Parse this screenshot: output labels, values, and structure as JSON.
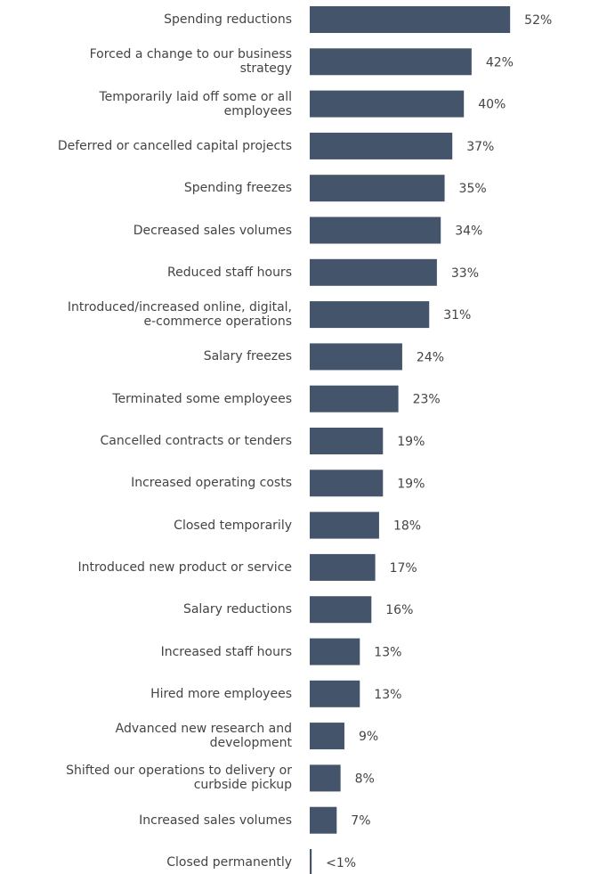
{
  "chart_data": {
    "type": "bar",
    "orientation": "horizontal",
    "color": "#44546a",
    "categories": [
      "Spending reductions",
      "Forced a change to our business\nstrategy",
      "Temporarily laid off some or all\nemployees",
      "Deferred or cancelled capital projects",
      "Spending freezes",
      "Decreased sales volumes",
      "Reduced staff hours",
      "Introduced/increased online, digital,\ne-commerce operations",
      "Salary freezes",
      "Terminated some employees",
      "Cancelled contracts or tenders",
      "Increased operating costs",
      "Closed temporarily",
      "Introduced new product or service",
      "Salary reductions",
      "Increased staff hours",
      "Hired more employees",
      "Advanced new research and\ndevelopment",
      "Shifted our operations to delivery or\ncurbside pickup",
      "Increased sales volumes",
      "Closed permanently"
    ],
    "values": [
      52,
      42,
      40,
      37,
      35,
      34,
      33,
      31,
      24,
      23,
      19,
      19,
      18,
      17,
      16,
      13,
      13,
      9,
      8,
      7,
      0.5
    ],
    "value_labels": [
      "52%",
      "42%",
      "40%",
      "37%",
      "35%",
      "34%",
      "33%",
      "31%",
      "24%",
      "23%",
      "19%",
      "19%",
      "18%",
      "17%",
      "16%",
      "13%",
      "13%",
      "9%",
      "8%",
      "7%",
      "<1%"
    ]
  }
}
